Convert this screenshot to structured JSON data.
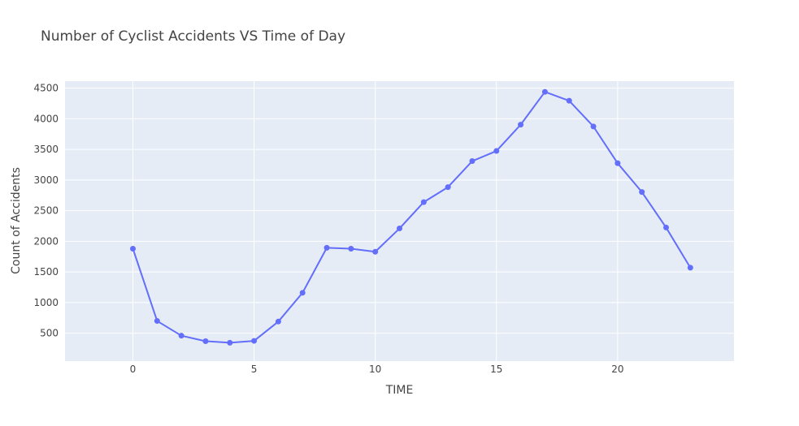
{
  "chart_data": {
    "type": "line",
    "title": "Number of Cyclist Accidents VS Time of Day",
    "xlabel": "TIME",
    "ylabel": "Count of Accidents",
    "xlim": [
      -2.8,
      24.8
    ],
    "ylim": [
      45,
      4615
    ],
    "xticks": [
      0,
      5,
      10,
      15,
      20
    ],
    "yticks": [
      500,
      1000,
      1500,
      2000,
      2500,
      3000,
      3500,
      4000,
      4500
    ],
    "grid": true,
    "colors": {
      "line": "#636efa",
      "plot_bg": "#e5ecf6",
      "grid": "#ffffff",
      "text": "#444444"
    },
    "series": [
      {
        "x": [
          0,
          1,
          2,
          3,
          4,
          5,
          6,
          7,
          8,
          9,
          10,
          11,
          12,
          13,
          14,
          15,
          16,
          17,
          18,
          19,
          20,
          21,
          22,
          23
        ],
        "values": [
          1880,
          700,
          460,
          370,
          345,
          375,
          690,
          1160,
          1895,
          1880,
          1830,
          2210,
          2640,
          2885,
          3310,
          3475,
          3905,
          4440,
          4295,
          3875,
          3275,
          2805,
          2225,
          1570
        ]
      }
    ]
  }
}
